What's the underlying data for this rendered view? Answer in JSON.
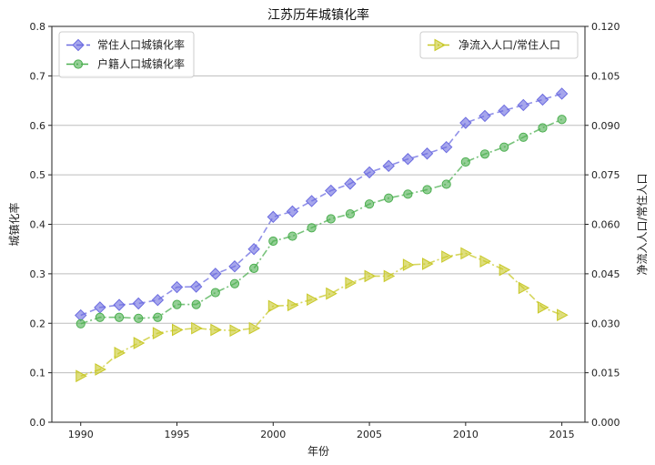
{
  "chart_data": {
    "type": "line",
    "title": "江苏历年城镇化率",
    "xlabel": "年份",
    "ylabel_left": "城镇化率",
    "ylabel_right": "净流入人口/常住人口",
    "xlim": [
      1988.5,
      2016.2
    ],
    "ylim_left": [
      0,
      0.8
    ],
    "ylim_right": [
      0,
      0.12
    ],
    "xticks": [
      "1990",
      "1995",
      "2000",
      "2005",
      "2010",
      "2015"
    ],
    "yticks_left": [
      "0.0",
      "0.1",
      "0.2",
      "0.3",
      "0.4",
      "0.5",
      "0.6",
      "0.7",
      "0.8"
    ],
    "yticks_right": [
      "0.000",
      "0.015",
      "0.030",
      "0.045",
      "0.060",
      "0.075",
      "0.090",
      "0.105",
      "0.120"
    ],
    "grid": "horizontal",
    "x": [
      1990,
      1991,
      1992,
      1993,
      1994,
      1995,
      1996,
      1997,
      1998,
      1999,
      2000,
      2001,
      2002,
      2003,
      2004,
      2005,
      2006,
      2007,
      2008,
      2009,
      2010,
      2011,
      2012,
      2013,
      2014,
      2015
    ],
    "series": [
      {
        "name": "常住人口城镇化率",
        "axis": "left",
        "color": "#6b6be0",
        "marker": "diamond",
        "line": "dashed",
        "values": [
          0.216,
          0.232,
          0.237,
          0.24,
          0.247,
          0.273,
          0.274,
          0.3,
          0.315,
          0.35,
          0.415,
          0.426,
          0.447,
          0.468,
          0.482,
          0.505,
          0.518,
          0.532,
          0.543,
          0.556,
          0.605,
          0.619,
          0.63,
          0.641,
          0.652,
          0.664
        ]
      },
      {
        "name": "户籍人口城镇化率",
        "axis": "left",
        "color": "#4caf50",
        "marker": "circle",
        "line": "dashdot",
        "values": [
          0.199,
          0.212,
          0.212,
          0.21,
          0.212,
          0.238,
          0.238,
          0.262,
          0.28,
          0.311,
          0.366,
          0.376,
          0.393,
          0.411,
          0.421,
          0.441,
          0.453,
          0.461,
          0.47,
          0.481,
          0.526,
          0.542,
          0.556,
          0.576,
          0.595,
          0.612
        ]
      },
      {
        "name": "净流入人口/常住人口",
        "axis": "right",
        "color": "#c8c828",
        "marker": "triangle-right",
        "line": "dashdot",
        "values": [
          0.014,
          0.016,
          0.021,
          0.024,
          0.027,
          0.028,
          0.0285,
          0.028,
          0.0278,
          0.0285,
          0.0352,
          0.0355,
          0.0372,
          0.039,
          0.0422,
          0.0443,
          0.0443,
          0.0477,
          0.048,
          0.0502,
          0.0512,
          0.0488,
          0.0462,
          0.0407,
          0.0348,
          0.0325
        ]
      }
    ],
    "legend_left": "top-left",
    "legend_right": "top-right"
  }
}
